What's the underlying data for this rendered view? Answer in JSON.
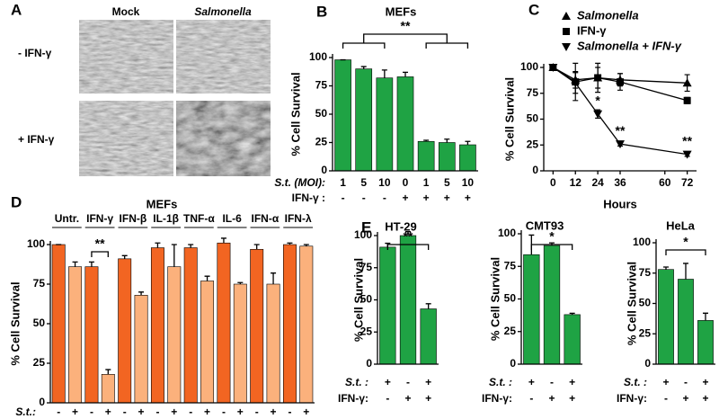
{
  "panel_a": {
    "letter": "A",
    "columns": [
      "Mock",
      "Salmonella"
    ],
    "rows": [
      "- IFN-γ",
      "+ IFN-γ"
    ]
  },
  "chart_data": [
    {
      "type": "bar",
      "letter": "B",
      "title": "MEFs",
      "ylabel": "% Cell Survival",
      "category_label": "S.t. (MOI):",
      "categories": [
        "1",
        "5",
        "10",
        "0",
        "1",
        "5",
        "10"
      ],
      "category2_label": "IFN-γ :",
      "categories2": [
        "-",
        "-",
        "-",
        "+",
        "+",
        "+",
        "+"
      ],
      "values": [
        98,
        90,
        82,
        83,
        26,
        25,
        23
      ],
      "errors": [
        0,
        2,
        7,
        4,
        1,
        3,
        3
      ],
      "color": "#1fa344",
      "ylim": [
        0,
        100
      ],
      "yticks": [
        0,
        25,
        50,
        75,
        100
      ],
      "significance": "**"
    },
    {
      "type": "line",
      "letter": "C",
      "ylabel": "% Cell Survival",
      "xlabel": "Hours",
      "x": [
        0,
        12,
        24,
        36,
        72
      ],
      "xlim": [
        -5,
        77
      ],
      "xticks": [
        0,
        12,
        24,
        36,
        60,
        72
      ],
      "ylim": [
        0,
        100
      ],
      "yticks": [
        0,
        25,
        50,
        75,
        100
      ],
      "series": [
        {
          "name": "Salmonella",
          "color": "#000000",
          "marker": "triangle-up",
          "values": [
            100,
            88,
            90,
            88,
            85
          ],
          "errors": [
            0,
            8,
            10,
            6,
            8
          ]
        },
        {
          "name": "IFN-γ",
          "color": "#000000",
          "marker": "square",
          "values": [
            100,
            86,
            90,
            86,
            68
          ],
          "errors": [
            0,
            18,
            14,
            8,
            3
          ]
        },
        {
          "name": "Salmonella + IFN-γ",
          "color": "#000000",
          "marker": "triangle-down",
          "values": [
            100,
            85,
            55,
            26,
            16
          ],
          "errors": [
            0,
            10,
            4,
            2,
            2
          ]
        }
      ],
      "annotations": [
        {
          "x": 24,
          "text": "*"
        },
        {
          "x": 36,
          "text": "**"
        },
        {
          "x": 72,
          "text": "**"
        }
      ]
    },
    {
      "type": "bar",
      "letter": "D",
      "title": "MEFs",
      "ylabel": "% Cell Survival",
      "groups": [
        "Untr.",
        "IFN-γ",
        "IFN-β",
        "IL-1β",
        "TNF-α",
        "IL-6",
        "IFN-α",
        "IFN-λ"
      ],
      "category_label": "S.t.:",
      "categories": [
        "-",
        "+",
        "-",
        "+",
        "-",
        "+",
        "-",
        "+",
        "-",
        "+",
        "-",
        "+",
        "-",
        "+",
        "-",
        "+"
      ],
      "values": [
        100,
        86,
        86,
        18,
        91,
        68,
        98,
        86,
        98,
        77,
        101,
        75,
        97,
        75,
        100,
        99
      ],
      "errors": [
        0,
        3,
        3,
        3,
        2,
        2,
        3,
        14,
        2,
        3,
        3,
        1,
        3,
        7,
        1,
        1
      ],
      "colors": [
        "#f26522",
        "#fbb17c",
        "#f26522",
        "#fbb17c",
        "#f26522",
        "#fbb17c",
        "#f26522",
        "#fbb17c",
        "#f26522",
        "#fbb17c",
        "#f26522",
        "#fbb17c",
        "#f26522",
        "#fbb17c",
        "#f26522",
        "#fbb17c"
      ],
      "ylim": [
        0,
        100
      ],
      "yticks": [
        0,
        25,
        50,
        75,
        100
      ],
      "significance": "**"
    },
    {
      "type": "bar",
      "letter": "E",
      "title": "HT-29",
      "ylabel": "% Cell Survival",
      "category_label": "S.t. :",
      "categories": [
        "+",
        "-",
        "+"
      ],
      "category2_label": "IFN-γ:",
      "categories2": [
        "-",
        "+",
        "+"
      ],
      "values": [
        91,
        100,
        43
      ],
      "errors": [
        3,
        3,
        4
      ],
      "color": "#1fa344",
      "ylim": [
        0,
        100
      ],
      "yticks": [
        0,
        25,
        50,
        75,
        100
      ],
      "significance": "**"
    },
    {
      "type": "bar",
      "title": "CMT93",
      "ylabel": "% Cell Survival",
      "category_label": "S.t. :",
      "categories": [
        "+",
        "-",
        "+"
      ],
      "category2_label": "IFN-γ:",
      "categories2": [
        "-",
        "+",
        "+"
      ],
      "values": [
        84,
        91,
        38
      ],
      "errors": [
        15,
        2,
        1
      ],
      "color": "#1fa344",
      "ylim": [
        0,
        100
      ],
      "yticks": [
        0,
        25,
        50,
        75,
        100
      ],
      "significance": "*"
    },
    {
      "type": "bar",
      "title": "HeLa",
      "ylabel": "% Cell Survival",
      "category_label": "S.t. :",
      "categories": [
        "+",
        "-",
        "+"
      ],
      "category2_label": "IFN-γ:",
      "categories2": [
        "-",
        "+",
        "+"
      ],
      "values": [
        78,
        70,
        36
      ],
      "errors": [
        2,
        13,
        6
      ],
      "color": "#1fa344",
      "ylim": [
        0,
        100
      ],
      "yticks": [
        0,
        25,
        50,
        75,
        100
      ],
      "significance": "*"
    }
  ]
}
